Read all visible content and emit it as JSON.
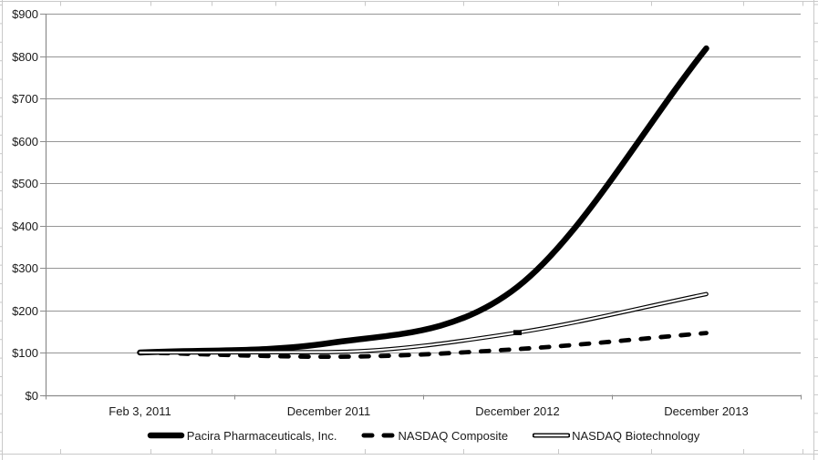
{
  "chart_data": {
    "type": "line",
    "title": "",
    "xlabel": "",
    "ylabel": "",
    "categories": [
      "Feb 3, 2011",
      "December 2011",
      "December 2012",
      "December 2013"
    ],
    "series": [
      {
        "name": "Pacira Pharmaceuticals, Inc.",
        "line_style": "solid-thick",
        "values": [
          100,
          122,
          255,
          818
        ]
      },
      {
        "name": "NASDAQ Composite",
        "line_style": "dashed-thick",
        "values": [
          100,
          90,
          108,
          146
        ]
      },
      {
        "name": "NASDAQ Biotechnology",
        "line_style": "double-thin",
        "values": [
          100,
          101,
          147,
          238
        ],
        "marker_at_index": 2
      }
    ],
    "ylim": [
      0,
      900
    ],
    "ytick_step": 100,
    "ytick_labels": [
      "$0",
      "$100",
      "$200",
      "$300",
      "$400",
      "$500",
      "$600",
      "$700",
      "$800",
      "$900"
    ],
    "grid": true,
    "legend_position": "bottom",
    "colors": {
      "series_line": "#000000",
      "grid": "#969696",
      "axis": "#8c8c8c",
      "text": "#1a1a1a",
      "frame_artifact": "#c9c9c9"
    }
  }
}
